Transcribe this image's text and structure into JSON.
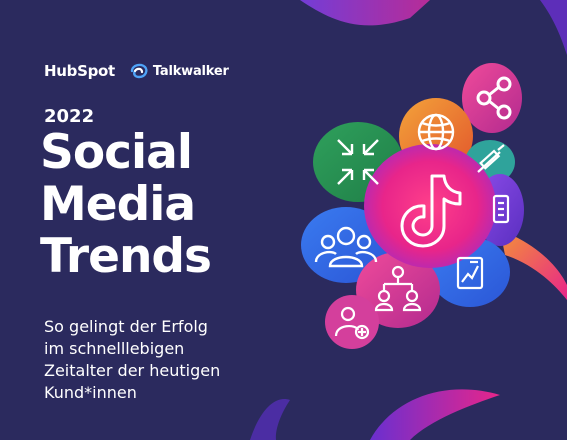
{
  "brand": {
    "hubspot_name": "HubSpot",
    "talkwalker_name": "Talkwalker"
  },
  "cover": {
    "year": "2022",
    "title_lines": [
      "Social",
      "Media",
      "Trends"
    ],
    "subtitle_lines": [
      "So gelingt der Erfolg",
      "im schnelllebigen",
      "Zeitalter der heutigen",
      "Kund*innen"
    ]
  },
  "colors": {
    "background": "#2b2a5e",
    "text": "#ffffff",
    "accent_pink": "#e8258a",
    "accent_purple": "#7b3fe4",
    "accent_orange": "#f39237"
  },
  "icons": [
    "share-icon",
    "globe-icon",
    "arrows-inward-icon",
    "tiktok-icon",
    "syringe-icon",
    "phone-icon",
    "people-group-icon",
    "network-people-icon",
    "chart-document-icon",
    "add-user-icon"
  ]
}
